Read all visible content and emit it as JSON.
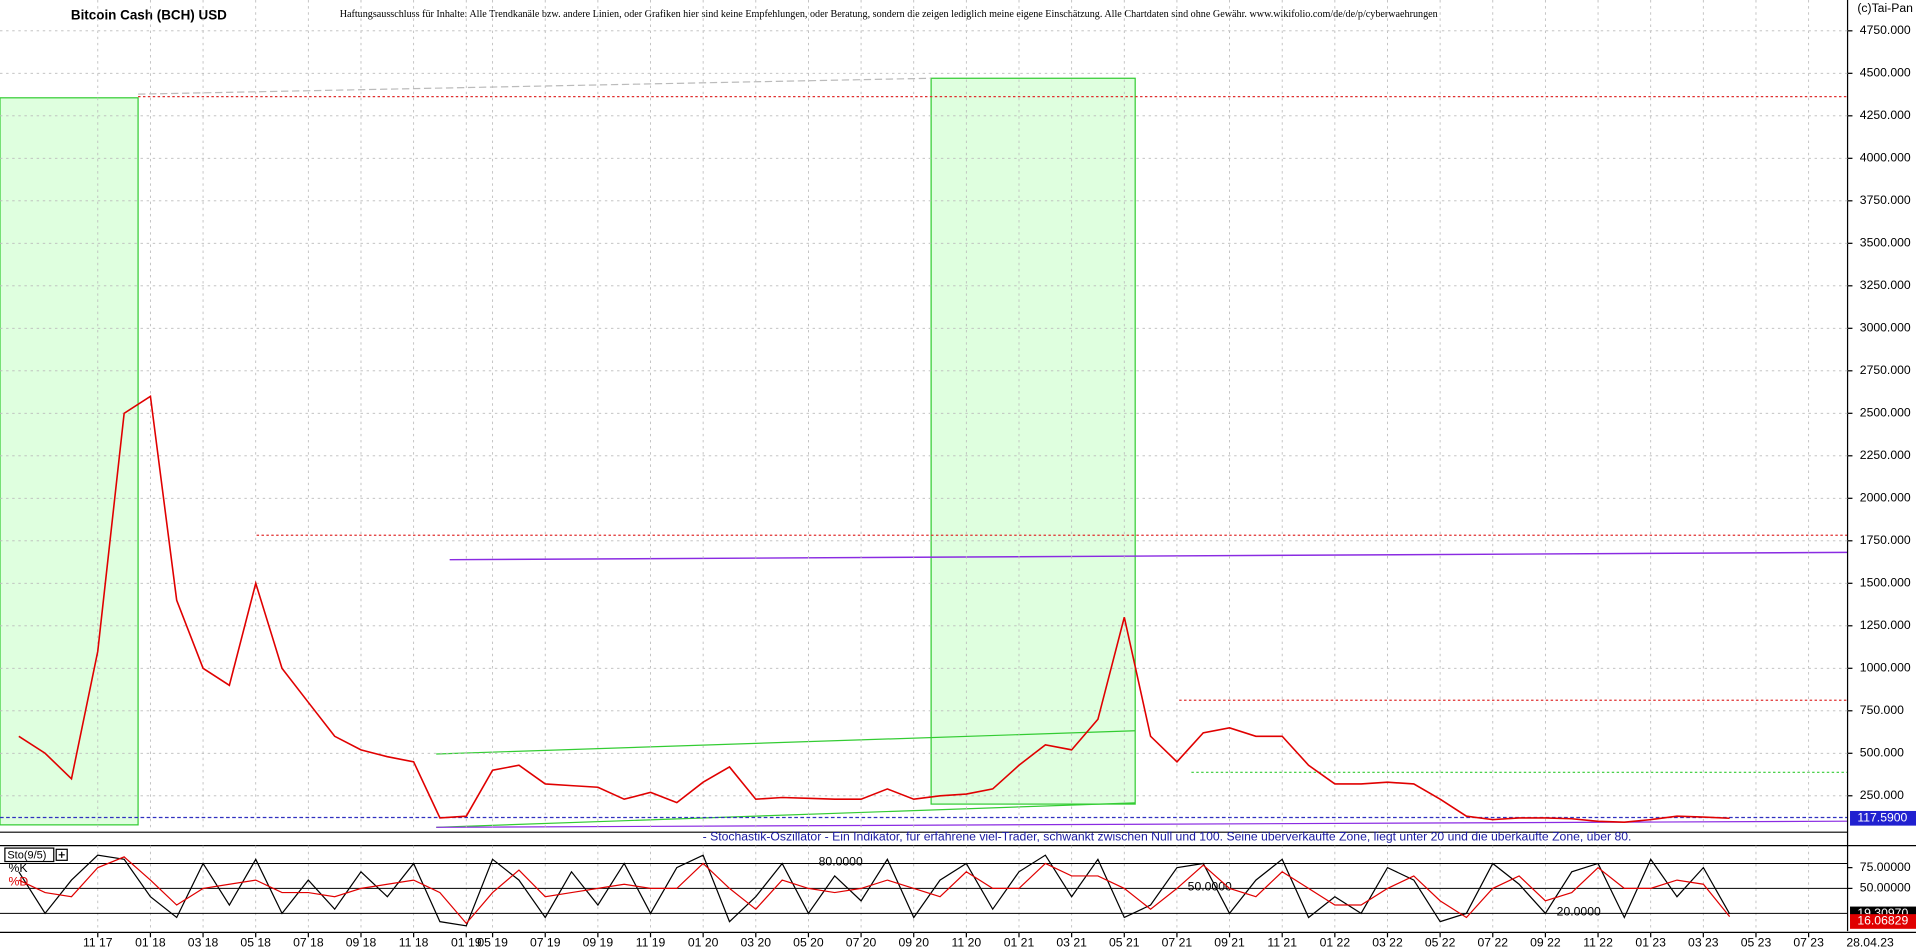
{
  "copyright": "(c)Tai-Pan",
  "chart_data": [
    {
      "type": "line",
      "title": "Bitcoin Cash (BCH) USD",
      "note": "Haftungsausschluss für Inhalte: Alle Trendkanäle bzw. andere Linien, oder Grafiken hier sind keine Empfehlungen, oder Beratung, sondern die zeigen lediglich meine eigene Einschätzung. Alle Chartdaten sind ohne Gewähr.  www.wikifolio.com/de/de/p/cyberwaehrungen",
      "categories": [
        null,
        null,
        null,
        "11 17",
        null,
        "01 18",
        null,
        "03 18",
        null,
        "05 18",
        null,
        "07 18",
        null,
        "09 18",
        null,
        "11 18",
        null,
        "01 19",
        "05 19",
        null,
        "07 19",
        null,
        "09 19",
        null,
        "11 19",
        null,
        "01 20",
        null,
        "03 20",
        null,
        "05 20",
        null,
        "07 20",
        null,
        "09 20",
        null,
        "11 20",
        null,
        "01 21",
        null,
        "03 21",
        null,
        "05 21",
        null,
        "07 21",
        null,
        "09 21",
        null,
        "11 21",
        null,
        "01 22",
        null,
        "03 22",
        null,
        "05 22",
        null,
        "07 22",
        null,
        "09 22",
        null,
        "11 22",
        null,
        "01 23",
        null,
        "03 23",
        null,
        "05 23",
        null,
        "07 23"
      ],
      "last_date": "28.04.23",
      "color": "#e00000",
      "values": [
        600,
        500,
        350,
        1100,
        2500,
        2600,
        1400,
        1000,
        900,
        1500,
        1000,
        800,
        600,
        520,
        480,
        450,
        120,
        130,
        400,
        430,
        320,
        310,
        300,
        230,
        270,
        210,
        330,
        420,
        230,
        240,
        235,
        230,
        230,
        290,
        230,
        250,
        260,
        290,
        430,
        550,
        520,
        700,
        1300,
        600,
        450,
        620,
        650,
        600,
        600,
        430,
        320,
        320,
        330,
        320,
        230,
        130,
        110,
        120,
        120,
        115,
        100,
        95,
        110,
        130,
        125,
        117.59,
        null,
        null,
        null
      ],
      "last_value": {
        "value": 117.59,
        "label": "117.5900"
      },
      "ylim": [
        43,
        4931
      ],
      "yticks": [
        {
          "value": 4750,
          "label": "4750.000"
        },
        {
          "value": 4500,
          "label": "4500.000"
        },
        {
          "value": 4250,
          "label": "4250.000"
        },
        {
          "value": 4000,
          "label": "4000.000"
        },
        {
          "value": 3750,
          "label": "3750.000"
        },
        {
          "value": 3500,
          "label": "3500.000"
        },
        {
          "value": 3250,
          "label": "3250.000"
        },
        {
          "value": 3000,
          "label": "3000.000"
        },
        {
          "value": 2750,
          "label": "2750.000"
        },
        {
          "value": 2500,
          "label": "2500.000"
        },
        {
          "value": 2250,
          "label": "2250.000"
        },
        {
          "value": 2000,
          "label": "2000.000"
        },
        {
          "value": 1750,
          "label": "1750.000"
        },
        {
          "value": 1500,
          "label": "1500.000"
        },
        {
          "value": 1250,
          "label": "1250.000"
        },
        {
          "value": 1000,
          "label": "1000.000"
        },
        {
          "value": 750,
          "label": "750.000"
        },
        {
          "value": 500,
          "label": "500.000"
        },
        {
          "value": 250,
          "label": "250.000"
        }
      ],
      "grid": true
    },
    {
      "type": "line",
      "title": "Sto(9/5)",
      "subtitle": "- Stochastik-Oszillator - Ein Indikator, für erfahrene viel-Trader, schwankt zwischen Null und 100. Seine überverkaufte Zone, liegt unter 20 und die überkaufte Zone, über 80.",
      "series": [
        {
          "name": "%K",
          "color": "#000000",
          "values": [
            70,
            20,
            60,
            90,
            85,
            40,
            15,
            80,
            30,
            85,
            20,
            60,
            25,
            70,
            40,
            80,
            10,
            5,
            85,
            60,
            15,
            70,
            30,
            80,
            20,
            75,
            90,
            10,
            40,
            80,
            20,
            65,
            35,
            85,
            15,
            60,
            80,
            25,
            70,
            90,
            40,
            85,
            15,
            30,
            75,
            80,
            20,
            60,
            85,
            15,
            40,
            20,
            75,
            60,
            10,
            20,
            80,
            55,
            20,
            70,
            80,
            15,
            85,
            40,
            75,
            19.3097,
            null,
            null,
            null
          ],
          "last_label": "19.30970"
        },
        {
          "name": "%D",
          "color": "#e00000",
          "values": [
            60,
            45,
            40,
            75,
            88,
            60,
            30,
            50,
            55,
            60,
            45,
            45,
            40,
            50,
            55,
            60,
            45,
            8,
            45,
            72,
            40,
            45,
            50,
            55,
            50,
            50,
            80,
            50,
            25,
            60,
            50,
            45,
            50,
            60,
            50,
            40,
            70,
            50,
            50,
            80,
            65,
            65,
            50,
            25,
            50,
            78,
            50,
            40,
            70,
            50,
            30,
            30,
            50,
            65,
            35,
            15,
            50,
            65,
            35,
            45,
            75,
            50,
            50,
            60,
            55,
            16.06829,
            null,
            null,
            null
          ],
          "last_label": "16.06829"
        }
      ],
      "levels": [
        {
          "value": 80,
          "label": "80.0000"
        },
        {
          "value": 50,
          "label": "50.0000"
        },
        {
          "value": 20,
          "label": "20.0000"
        }
      ],
      "ylim": [
        0,
        100
      ],
      "yticks": [
        {
          "value": 75,
          "label": "75.00000"
        },
        {
          "value": 50,
          "label": "50.00000"
        }
      ]
    }
  ]
}
